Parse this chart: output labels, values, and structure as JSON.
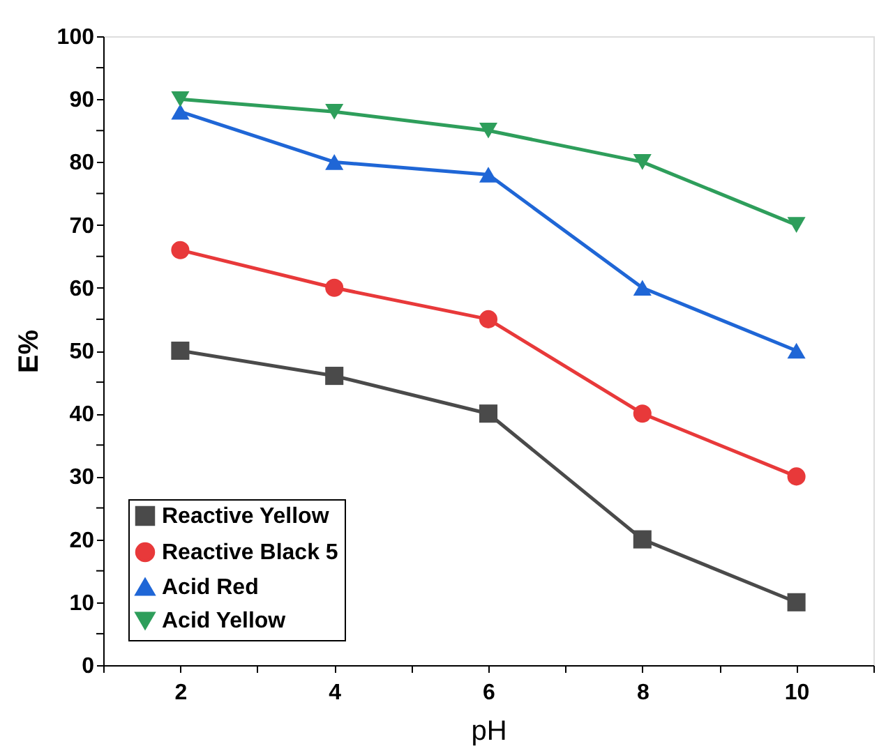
{
  "chart_data": {
    "type": "line",
    "xlabel": "pH",
    "ylabel": "E%",
    "x": [
      2,
      4,
      6,
      8,
      10
    ],
    "series": [
      {
        "name": "Reactive Yellow",
        "color": "#4a4a4a",
        "marker": "square",
        "values": [
          50,
          46,
          40,
          20,
          10
        ]
      },
      {
        "name": "Reactive Black 5",
        "color": "#e8393a",
        "marker": "circle",
        "values": [
          66,
          60,
          55,
          40,
          30
        ]
      },
      {
        "name": "Acid Red",
        "color": "#1f66d6",
        "marker": "triangle",
        "values": [
          88,
          80,
          78,
          60,
          50
        ]
      },
      {
        "name": "Acid Yellow",
        "color": "#2e9e5b",
        "marker": "triangle-down",
        "values": [
          90,
          88,
          85,
          80,
          70
        ]
      }
    ],
    "xlim": [
      1,
      11
    ],
    "xticks": [
      {
        "value": 1,
        "label": null
      },
      2,
      {
        "value": 3,
        "label": null
      },
      4,
      {
        "value": 5,
        "label": null
      },
      6,
      {
        "value": 7,
        "label": null
      },
      8,
      {
        "value": 9,
        "label": null
      },
      10,
      {
        "value": 11,
        "label": null
      }
    ],
    "ylim": [
      0,
      100
    ],
    "yticks": [
      0,
      {
        "value": 5,
        "label": null
      },
      10,
      {
        "value": 15,
        "label": null
      },
      20,
      {
        "value": 25,
        "label": null
      },
      30,
      {
        "value": 35,
        "label": null
      },
      40,
      {
        "value": 45,
        "label": null
      },
      50,
      {
        "value": 55,
        "label": null
      },
      60,
      {
        "value": 65,
        "label": null
      },
      70,
      {
        "value": 75,
        "label": null
      },
      80,
      {
        "value": 85,
        "label": null
      },
      90,
      {
        "value": 95,
        "label": null
      },
      100
    ],
    "grid": false,
    "legend": "bottom left",
    "line_style": "solid"
  }
}
